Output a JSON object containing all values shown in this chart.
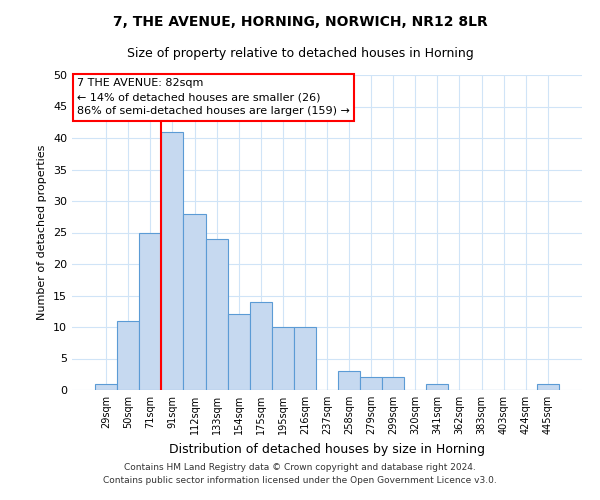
{
  "title": "7, THE AVENUE, HORNING, NORWICH, NR12 8LR",
  "subtitle": "Size of property relative to detached houses in Horning",
  "xlabel": "Distribution of detached houses by size in Horning",
  "ylabel": "Number of detached properties",
  "bin_labels": [
    "29sqm",
    "50sqm",
    "71sqm",
    "91sqm",
    "112sqm",
    "133sqm",
    "154sqm",
    "175sqm",
    "195sqm",
    "216sqm",
    "237sqm",
    "258sqm",
    "279sqm",
    "299sqm",
    "320sqm",
    "341sqm",
    "362sqm",
    "383sqm",
    "403sqm",
    "424sqm",
    "445sqm"
  ],
  "bar_values": [
    1,
    11,
    25,
    41,
    28,
    24,
    12,
    14,
    10,
    10,
    0,
    3,
    2,
    2,
    0,
    1,
    0,
    0,
    0,
    0,
    1
  ],
  "bar_color": "#c6d9f0",
  "bar_edge_color": "#5b9bd5",
  "vline_color": "red",
  "vline_position": 3.5,
  "ylim": [
    0,
    50
  ],
  "yticks": [
    0,
    5,
    10,
    15,
    20,
    25,
    30,
    35,
    40,
    45,
    50
  ],
  "annotation_title": "7 THE AVENUE: 82sqm",
  "annotation_line1": "← 14% of detached houses are smaller (26)",
  "annotation_line2": "86% of semi-detached houses are larger (159) →",
  "annotation_box_color": "white",
  "annotation_box_edge_color": "red",
  "footnote1": "Contains HM Land Registry data © Crown copyright and database right 2024.",
  "footnote2": "Contains public sector information licensed under the Open Government Licence v3.0.",
  "grid_color": "#d0e4f7",
  "title_fontsize": 10,
  "subtitle_fontsize": 9,
  "ylabel_fontsize": 8,
  "xlabel_fontsize": 9
}
